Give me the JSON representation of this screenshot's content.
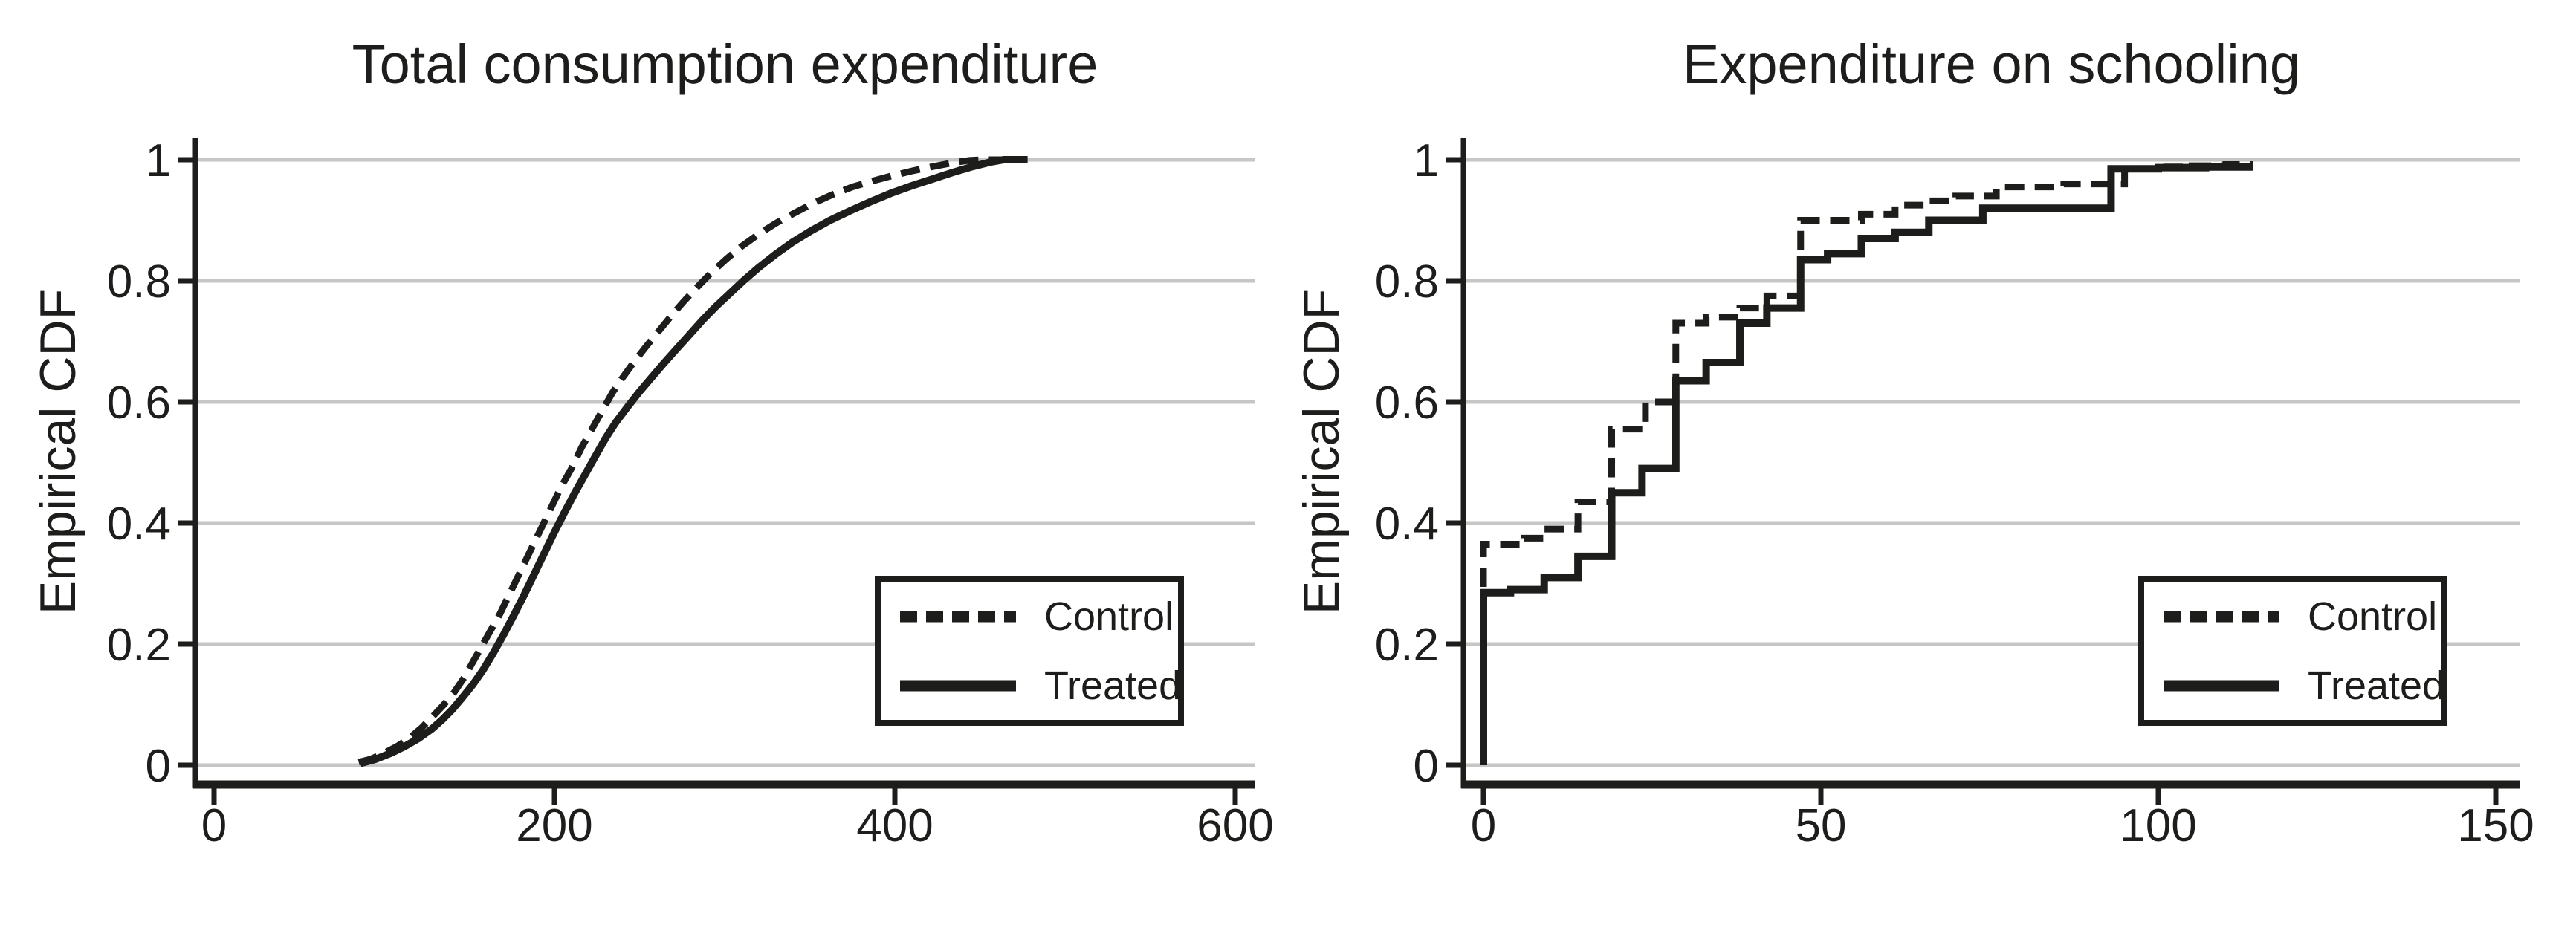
{
  "style": {
    "ink": "#1d1d1b",
    "grid": "#c6c6c6",
    "background": "#ffffff"
  },
  "chart_data": [
    {
      "type": "line",
      "title": "Total consumption expenditure",
      "ylabel": "Empirical CDF",
      "xlabel": "",
      "xlim": [
        0,
        600
      ],
      "ylim": [
        0,
        1
      ],
      "grid": "horizontal",
      "legend_position": "lower-right",
      "x_ticks": [
        "0",
        "200",
        "400",
        "600"
      ],
      "x_tick_values": [
        0,
        200,
        400,
        600
      ],
      "y_ticks": [
        "0",
        "0.2",
        "0.4",
        "0.6",
        "0.8",
        "1"
      ],
      "y_tick_values": [
        0,
        0.2,
        0.4,
        0.6,
        0.8,
        1
      ],
      "series": [
        {
          "name": "Control",
          "line_style": "dashed",
          "points": [
            [
              85,
              0.005
            ],
            [
              92,
              0.01
            ],
            [
              100,
              0.02
            ],
            [
              108,
              0.032
            ],
            [
              115,
              0.045
            ],
            [
              122,
              0.062
            ],
            [
              129,
              0.082
            ],
            [
              135,
              0.1
            ],
            [
              141,
              0.12
            ],
            [
              147,
              0.145
            ],
            [
              152,
              0.17
            ],
            [
              157,
              0.195
            ],
            [
              162,
              0.22
            ],
            [
              168,
              0.25
            ],
            [
              174,
              0.285
            ],
            [
              180,
              0.32
            ],
            [
              186,
              0.355
            ],
            [
              192,
              0.39
            ],
            [
              198,
              0.425
            ],
            [
              204,
              0.46
            ],
            [
              210,
              0.49
            ],
            [
              216,
              0.525
            ],
            [
              222,
              0.555
            ],
            [
              228,
              0.585
            ],
            [
              234,
              0.615
            ],
            [
              240,
              0.64
            ],
            [
              247,
              0.667
            ],
            [
              254,
              0.692
            ],
            [
              261,
              0.716
            ],
            [
              268,
              0.74
            ],
            [
              276,
              0.766
            ],
            [
              284,
              0.79
            ],
            [
              292,
              0.813
            ],
            [
              301,
              0.836
            ],
            [
              310,
              0.857
            ],
            [
              320,
              0.877
            ],
            [
              330,
              0.895
            ],
            [
              341,
              0.912
            ],
            [
              352,
              0.928
            ],
            [
              363,
              0.942
            ],
            [
              375,
              0.955
            ],
            [
              387,
              0.965
            ],
            [
              399,
              0.974
            ],
            [
              411,
              0.982
            ],
            [
              423,
              0.989
            ],
            [
              434,
              0.995
            ],
            [
              444,
              0.999
            ],
            [
              452,
              1
            ],
            [
              477,
              1
            ]
          ]
        },
        {
          "name": "Treated",
          "line_style": "solid",
          "points": [
            [
              86,
              0.003
            ],
            [
              95,
              0.01
            ],
            [
              104,
              0.02
            ],
            [
              112,
              0.031
            ],
            [
              120,
              0.044
            ],
            [
              128,
              0.06
            ],
            [
              134,
              0.075
            ],
            [
              140,
              0.092
            ],
            [
              146,
              0.112
            ],
            [
              152,
              0.133
            ],
            [
              158,
              0.157
            ],
            [
              164,
              0.185
            ],
            [
              170,
              0.215
            ],
            [
              176,
              0.247
            ],
            [
              182,
              0.28
            ],
            [
              188,
              0.315
            ],
            [
              194,
              0.35
            ],
            [
              200,
              0.385
            ],
            [
              206,
              0.418
            ],
            [
              212,
              0.45
            ],
            [
              218,
              0.48
            ],
            [
              224,
              0.51
            ],
            [
              230,
              0.54
            ],
            [
              236,
              0.566
            ],
            [
              243,
              0.592
            ],
            [
              250,
              0.617
            ],
            [
              257,
              0.64
            ],
            [
              264,
              0.663
            ],
            [
              271,
              0.685
            ],
            [
              279,
              0.71
            ],
            [
              287,
              0.735
            ],
            [
              295,
              0.758
            ],
            [
              303,
              0.779
            ],
            [
              311,
              0.8
            ],
            [
              320,
              0.822
            ],
            [
              330,
              0.844
            ],
            [
              340,
              0.864
            ],
            [
              351,
              0.883
            ],
            [
              362,
              0.9
            ],
            [
              374,
              0.916
            ],
            [
              386,
              0.931
            ],
            [
              398,
              0.945
            ],
            [
              410,
              0.957
            ],
            [
              422,
              0.968
            ],
            [
              434,
              0.979
            ],
            [
              446,
              0.989
            ],
            [
              456,
              0.996
            ],
            [
              464,
              1
            ],
            [
              478,
              1
            ]
          ]
        }
      ]
    },
    {
      "type": "step",
      "title": "Expenditure on schooling",
      "ylabel": "Empirical CDF",
      "xlabel": "",
      "xlim": [
        0,
        150
      ],
      "ylim": [
        0,
        1
      ],
      "grid": "horizontal",
      "legend_position": "lower-right",
      "x_ticks": [
        "0",
        "50",
        "100",
        "150"
      ],
      "x_tick_values": [
        0,
        50,
        100,
        150
      ],
      "y_ticks": [
        "0",
        "0.2",
        "0.4",
        "0.6",
        "0.8",
        "1"
      ],
      "y_tick_values": [
        0,
        0.2,
        0.4,
        0.6,
        0.8,
        1
      ],
      "series": [
        {
          "name": "Control",
          "line_style": "dashed",
          "points": [
            [
              0,
              0.365
            ],
            [
              6,
              0.375
            ],
            [
              9,
              0.39
            ],
            [
              14,
              0.435
            ],
            [
              19,
              0.555
            ],
            [
              24,
              0.6
            ],
            [
              28.5,
              0.73
            ],
            [
              33,
              0.74
            ],
            [
              38,
              0.755
            ],
            [
              42,
              0.775
            ],
            [
              47,
              0.9
            ],
            [
              56,
              0.91
            ],
            [
              61,
              0.925
            ],
            [
              66,
              0.932
            ],
            [
              70,
              0.94
            ],
            [
              76,
              0.955
            ],
            [
              86,
              0.96
            ],
            [
              95,
              0.985
            ],
            [
              100,
              0.988
            ],
            [
              105,
              0.99
            ],
            [
              110,
              0.992
            ],
            [
              114,
              0.992
            ]
          ]
        },
        {
          "name": "Treated",
          "line_style": "solid",
          "points": [
            [
              0,
              0.285
            ],
            [
              4,
              0.29
            ],
            [
              9,
              0.31
            ],
            [
              14,
              0.345
            ],
            [
              19,
              0.45
            ],
            [
              23.5,
              0.49
            ],
            [
              28.5,
              0.635
            ],
            [
              33,
              0.665
            ],
            [
              38,
              0.73
            ],
            [
              42,
              0.755
            ],
            [
              47,
              0.835
            ],
            [
              51,
              0.845
            ],
            [
              56,
              0.87
            ],
            [
              61,
              0.88
            ],
            [
              66,
              0.9
            ],
            [
              74,
              0.92
            ],
            [
              93,
              0.985
            ],
            [
              100,
              0.987
            ],
            [
              107,
              0.988
            ],
            [
              114,
              0.988
            ]
          ]
        }
      ]
    }
  ]
}
